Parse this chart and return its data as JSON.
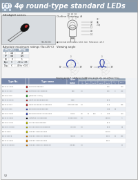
{
  "title": "4φ round-type standard LEDs",
  "series_label": "SEL4φ10 series",
  "page_bg": "#f4f4f4",
  "white": "#ffffff",
  "header_bar_bg": "#8899aa",
  "table_header_bg": "#9aaabb",
  "photo_bg": "#d8dce0",
  "draw_bg": "#f0f0f0",
  "abs_max_ratings": [
    [
      "IF",
      "mA",
      "20"
    ],
    [
      "IFP",
      "mA",
      "100"
    ],
    [
      "VR",
      "V",
      "5"
    ],
    [
      "Topr",
      "°C",
      "-30 to +85"
    ],
    [
      "Tstg",
      "°C",
      "-40 to +100"
    ]
  ],
  "color_map": {
    "red": "#cc3333",
    "orange_red": "#cc4422",
    "green": "#33aa33",
    "blue": "#4455cc",
    "black": "#111111",
    "yellow": "#cccc00",
    "orange": "#ee8800",
    "amber": "#dd9900"
  },
  "data_rows": [
    [
      "SEL4410-1000",
      "red",
      "Part blue diffused",
      "",
      "",
      "",
      "",
      "",
      "700",
      "",
      "",
      "140"
    ],
    [
      "SEL4410-100",
      "red",
      "Part blue non-diffused",
      "Red",
      "2.0",
      "",
      "",
      "",
      "700",
      "0",
      "1600",
      "145"
    ],
    [
      "SEL4y10-100",
      "green",
      "(primary 40 nm)",
      "",
      "",
      "",
      "",
      "",
      "",
      "",
      "",
      ""
    ],
    [
      "SEL4410-H000",
      "red",
      "Light blu lamp diffused",
      "High",
      "",
      "",
      "",
      "",
      "10.0",
      "",
      "",
      ""
    ],
    [
      "SEL4410-H00",
      "red",
      "Light blu lamp non-diffused",
      "intensity red",
      "1.9",
      "",
      "",
      "",
      "17.5",
      "",
      "8000",
      "105"
    ],
    [
      "SEL4y10-162",
      "blue",
      "igh green blue diffused",
      "",
      "",
      "",
      "",
      "",
      "0.45",
      "30",
      "",
      ""
    ],
    [
      "SEL4y10-162b",
      "blue",
      "igh green blue non-diffused",
      "Green",
      "2.5",
      "10",
      "100",
      "4",
      "0.45",
      "",
      "1440",
      "240"
    ],
    [
      "SEL4410-0004",
      "black",
      "Untinted non-diffused",
      "Pure green",
      "0.0",
      "",
      "",
      "",
      "40000",
      "",
      "9000",
      "A"
    ],
    [
      "SEL4y10-1104",
      "yellow",
      "Yellow lamp diffused",
      "",
      "",
      "",
      "",
      "",
      "10.0",
      "",
      "",
      ""
    ],
    [
      "SEL4y10-1104b",
      "yellow",
      "Yellow lamp non-diffused",
      "Yellow",
      "1.9",
      "",
      "",
      "",
      "30.0",
      "",
      "5100",
      "40"
    ],
    [
      "SEL4410HA",
      "yellow",
      "Orange lamp diffused",
      "",
      "",
      "",
      "",
      "",
      "10000",
      "",
      "",
      ""
    ],
    [
      "SEL4410HAb",
      "orange",
      "Orange lamp non-diffused",
      "Amber",
      "1.9",
      "",
      "",
      "",
      "1000",
      "19",
      "8700",
      "105"
    ],
    [
      "SEL4410-0001",
      "orange",
      "Orange lamp diffused",
      "",
      "",
      "",
      "",
      "",
      "1000",
      "",
      "",
      ""
    ],
    [
      "SEL4410-0001b",
      "orange",
      "Orange lamp non-diffused",
      "Orange",
      "1.9",
      "",
      "",
      "",
      "",
      "",
      "567",
      "50"
    ]
  ],
  "page_number": "52"
}
